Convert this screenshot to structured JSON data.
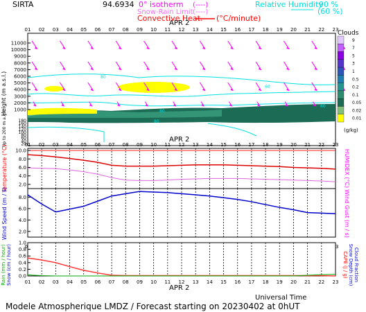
{
  "header": {
    "station": "SIRTA",
    "elevation": "94.6934",
    "legend": {
      "isotherm": "0° isotherm",
      "isotherm_sym": "(----)",
      "snow_rain": "Snow-Rain Limit",
      "snow_rain_sym": "(----)",
      "convective": "Convective Heat.",
      "convective_unit": "(°C/minute)",
      "rh_label": "Relative Humidity",
      "rh_90": "90 %",
      "rh_60": "(60 %)"
    }
  },
  "colors": {
    "magenta": "#ff00ff",
    "cyan": "#00ffff",
    "red": "#ff0000",
    "blue": "#0000cc",
    "violet": "#dd44dd",
    "green": "#00aa00",
    "cloud_dark": "#1c6b55",
    "cloud_mid": "#3aa07d",
    "cloud_yellow": "#ffff00"
  },
  "hours": [
    "01",
    "02",
    "03",
    "04",
    "05",
    "06",
    "07",
    "08",
    "09",
    "10",
    "11",
    "12",
    "13",
    "14",
    "15",
    "16",
    "17",
    "18",
    "19",
    "20",
    "21",
    "22",
    "23"
  ],
  "date_label": "APR  2",
  "panel_top": {
    "ylabel": "Height (m a.s.l.)",
    "ylabel2": "Up to 200 m a.g.l.",
    "yticks_upper": [
      "11000",
      "10000",
      "9000",
      "8000",
      "7000",
      "6000",
      "5000",
      "4000",
      "3000",
      "2000",
      "1000"
    ],
    "yticks_lower": [
      "180",
      "160",
      "140",
      "120",
      "100",
      "80",
      "60",
      "40",
      "20"
    ],
    "cloud_scale": {
      "title": "Clouds",
      "labels": [
        "9",
        "7",
        "5",
        "3",
        "1",
        "0.5",
        "0.2",
        "0.1",
        "0.05",
        "0.02",
        "0.01"
      ],
      "colors": [
        "#e0c8ff",
        "#c060ff",
        "#8a00e0",
        "#5533cc",
        "#2b55b8",
        "#1f7db0",
        "#25968f",
        "#2e8b6d",
        "#1c6b55",
        "#82c07a",
        "#ffff00"
      ],
      "unit": "(g/kg)"
    },
    "contour_label": "60",
    "contour_labels": [
      "80",
      "60",
      "80",
      "60",
      "80"
    ]
  },
  "panel_temp": {
    "ylabel": "Temperature (°C)",
    "ylabel2": "HUMIDEX (°C)",
    "yticks": [
      "10.0",
      "8.0",
      "6.0",
      "4.0",
      "2.0"
    ],
    "ylim": [
      1,
      10.5
    ]
  },
  "panel_wind": {
    "ylabel": "Wind Speed (m / s)",
    "ylabel2": "Wind Gust (m / s)",
    "yticks": [
      "8.0",
      "6.0",
      "4.0",
      "2.0"
    ],
    "ylim": [
      1,
      9.5
    ]
  },
  "panel_rain": {
    "ylabel": "Rain (mm / hour)",
    "ylabel2": "Snow (cm / hour)",
    "ylabel3": "CAPE (J / g)",
    "ylabel4": "Snow Depth (cm)",
    "ylabel5": "Cloud Fraction",
    "yticks": [
      "1.0",
      "0.8",
      "0.6",
      "0.4",
      "0.2",
      "0.0"
    ],
    "ylim": [
      0,
      1.0
    ]
  },
  "footer": {
    "axis_title": "Universal Time",
    "caption": "Modele Atmospherique LMDZ / Forecast starting on 20230402 at 0hUT"
  },
  "chart_data": [
    {
      "type": "heatmap",
      "title": "",
      "xlabel": "",
      "ylabel": "Height (m a.s.l.)",
      "x": [
        1,
        2,
        3,
        4,
        5,
        6,
        7,
        8,
        9,
        10,
        11,
        12,
        13,
        14,
        15,
        16,
        17,
        18,
        19,
        20,
        21,
        22,
        23
      ],
      "ylim": [
        0,
        11500
      ],
      "legend": "right"
    },
    {
      "type": "line",
      "ylabel": "Temperature (°C)",
      "x": [
        1,
        2,
        3,
        4,
        5,
        6,
        7,
        8,
        9,
        10,
        11,
        12,
        13,
        14,
        15,
        16,
        17,
        18,
        19,
        20,
        21,
        22,
        23
      ],
      "ylim": [
        1,
        10.5
      ],
      "grid": true,
      "series": [
        {
          "name": "Temperature",
          "values": [
            9.0,
            8.8,
            8.5,
            8.1,
            7.7,
            7.2,
            6.5,
            6.3,
            6.3,
            6.3,
            6.4,
            6.5,
            6.6,
            6.6,
            6.6,
            6.5,
            6.4,
            6.3,
            6.2,
            6.0,
            5.9,
            5.8,
            5.6
          ]
        },
        {
          "name": "HUMIDEX",
          "values": [
            5.9,
            5.8,
            5.7,
            5.4,
            5.0,
            4.4,
            3.6,
            3.0,
            2.9,
            2.9,
            3.0,
            3.2,
            3.3,
            3.4,
            3.4,
            3.4,
            3.3,
            3.2,
            3.1,
            3.0,
            2.9,
            2.8,
            2.6
          ]
        }
      ]
    },
    {
      "type": "line",
      "ylabel": "Wind Speed (m / s)",
      "x": [
        1,
        2,
        3,
        4,
        5,
        6,
        7,
        8,
        9,
        10,
        11,
        12,
        13,
        14,
        15,
        16,
        17,
        18,
        19,
        20,
        21,
        22,
        23
      ],
      "ylim": [
        1,
        9.5
      ],
      "grid": true,
      "series": [
        {
          "name": "Wind Speed",
          "values": [
            8.4,
            6.8,
            5.4,
            5.9,
            6.4,
            7.3,
            8.2,
            8.6,
            9.0,
            8.9,
            8.8,
            8.6,
            8.4,
            8.2,
            7.9,
            7.6,
            7.2,
            6.7,
            6.2,
            5.8,
            5.3,
            5.2,
            5.1
          ]
        }
      ]
    },
    {
      "type": "line",
      "ylabel": "Rain (mm / hour)",
      "x": [
        1,
        2,
        3,
        4,
        5,
        6,
        7,
        8,
        9,
        10,
        11,
        12,
        13,
        14,
        15,
        16,
        17,
        18,
        19,
        20,
        21,
        22,
        23
      ],
      "ylim": [
        0,
        1.0
      ],
      "grid": true,
      "series": [
        {
          "name": "CAPE",
          "values": [
            0.54,
            0.48,
            0.4,
            0.28,
            0.17,
            0.09,
            0.02,
            0.01,
            0.01,
            0.01,
            0.01,
            0.01,
            0.01,
            0.01,
            0.01,
            0.01,
            0.01,
            0.01,
            0.01,
            0.01,
            0.01,
            0.01,
            0.0
          ]
        },
        {
          "name": "Rain",
          "values": [
            0.03,
            0.01,
            0,
            0,
            0,
            0,
            0,
            0,
            0,
            0,
            0,
            0,
            0,
            0,
            0,
            0,
            0,
            0,
            0,
            0,
            0.02,
            0.04,
            0.05
          ]
        }
      ]
    }
  ]
}
